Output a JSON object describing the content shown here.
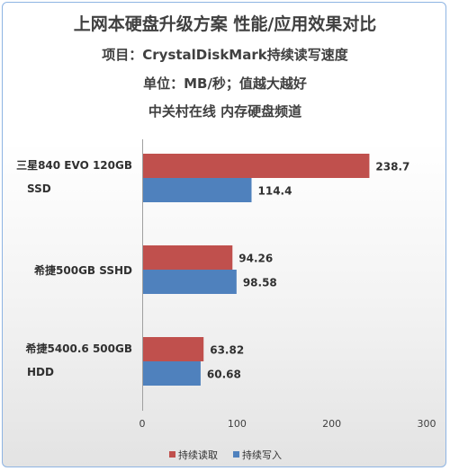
{
  "titles": {
    "main": "上网本硬盘升级方案 性能/应用效果对比",
    "project": "项目：CrystalDiskMark持续读写速度",
    "unit": "单位：MB/秒；值越大越好",
    "source": "中关村在线 内存硬盘频道"
  },
  "colors": {
    "read": "#c0504d",
    "write": "#4f81bd",
    "border": "#8eb4e3"
  },
  "chart_data": {
    "type": "bar",
    "orientation": "horizontal",
    "categories": [
      [
        "三星840 EVO 120GB",
        "SSD"
      ],
      [
        "希捷500GB SSHD"
      ],
      [
        "希捷5400.6 500GB",
        "HDD"
      ]
    ],
    "series": [
      {
        "name": "持续读取",
        "values": [
          238.7,
          94.26,
          63.82
        ],
        "labels": [
          "238.7",
          "94.26",
          "63.82"
        ]
      },
      {
        "name": "持续写入",
        "values": [
          114.4,
          98.58,
          60.68
        ],
        "labels": [
          "114.4",
          "98.58",
          "60.68"
        ]
      }
    ],
    "xlim": [
      0,
      300
    ],
    "xticks": [
      "0",
      "100",
      "200",
      "300"
    ],
    "grid": false,
    "legend": "bottom"
  }
}
